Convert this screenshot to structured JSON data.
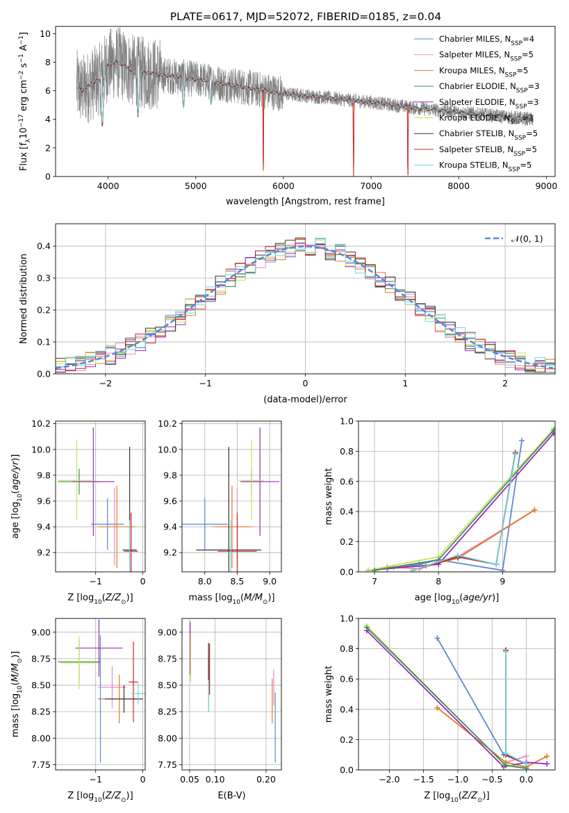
{
  "figure": {
    "title": "PLATE=0617, MJD=52072, FIBERID=0185, z=0.04"
  },
  "models": [
    {
      "name": "Chabrier MILES",
      "nssp": "4",
      "color": "#5b87d6"
    },
    {
      "name": "Salpeter MILES",
      "nssp": "5",
      "color": "#e98ac8"
    },
    {
      "name": "Kroupa MILES",
      "nssp": "5",
      "color": "#e07b25"
    },
    {
      "name": "Chabrier ELODIE",
      "nssp": "3",
      "color": "#3c8a6a"
    },
    {
      "name": "Salpeter ELODIE",
      "nssp": "3",
      "color": "#9a2ab5"
    },
    {
      "name": "Kroupa ELODIE",
      "nssp": "3",
      "color": "#c7e15a"
    },
    {
      "name": "Chabrier STELIB",
      "nssp": "5",
      "color": "#333333"
    },
    {
      "name": "Salpeter STELIB",
      "nssp": "5",
      "color": "#c9202a"
    },
    {
      "name": "Kroupa STELIB",
      "nssp": "5",
      "color": "#6fd6de"
    }
  ],
  "chart_data": [
    {
      "id": "spectrum",
      "type": "line",
      "xlabel": "wavelength [Angstrom, rest frame]",
      "ylabel": "Flux [f_λ10^-17 erg cm^-2 s^-1 A^-1]",
      "xlim": [
        3400,
        9100
      ],
      "ylim": [
        0,
        10.5
      ],
      "xticks": [
        4000,
        5000,
        6000,
        7000,
        8000,
        9000
      ],
      "yticks": [
        0,
        2,
        4,
        6,
        8,
        10
      ],
      "data_color": "#808080",
      "data_wavelength_range": [
        3640,
        8850
      ],
      "model_continuum": {
        "wavelength": [
          3650,
          3700,
          3800,
          3900,
          4000,
          4100,
          4200,
          4300,
          4500,
          5000,
          5500,
          6000,
          6500,
          7000,
          7500,
          8000,
          8500,
          8850
        ],
        "flux": [
          6.3,
          6.0,
          6.4,
          6.8,
          7.8,
          8.0,
          7.7,
          7.3,
          7.2,
          6.8,
          6.3,
          5.8,
          5.5,
          5.2,
          4.8,
          4.5,
          4.2,
          4.0
        ]
      },
      "absorption_features": [
        {
          "wavelength": 3934,
          "depth": 3.5
        },
        {
          "wavelength": 4340,
          "depth": 3.0
        },
        {
          "wavelength": 4860,
          "depth": 2.0
        },
        {
          "wavelength": 5175,
          "depth": 1.5
        },
        {
          "wavelength": 5770,
          "depth": 6.0
        },
        {
          "wavelength": 6800,
          "depth": 5.5
        },
        {
          "wavelength": 7420,
          "depth": 5.0
        }
      ],
      "grid": false,
      "legend": "upper right"
    },
    {
      "id": "residuals",
      "type": "histogram",
      "xlabel": "(data-model)/error",
      "ylabel": "Normed distribution",
      "xlim": [
        -2.5,
        2.5
      ],
      "ylim": [
        0,
        0.47
      ],
      "xticks": [
        -2,
        -1,
        0,
        1,
        2
      ],
      "yticks": [
        0.0,
        0.1,
        0.2,
        0.3,
        0.4
      ],
      "bin_width": 0.1,
      "reference": {
        "name": "𝒩(0, 1)",
        "mean": 0,
        "sigma": 1,
        "color": "#5b87d6",
        "style": "dashed"
      },
      "grid": true,
      "legend": "upper right"
    },
    {
      "id": "age-vs-Z",
      "type": "errorbar",
      "xlabel": "Z [log10(Z/Z⊙)]",
      "ylabel": "age  [log10(age/yr)]",
      "xlim": [
        -1.85,
        0.05
      ],
      "ylim": [
        9.05,
        10.22
      ],
      "xticks": [
        -1,
        0
      ],
      "yticks": [
        9.2,
        9.4,
        9.6,
        9.8,
        10.0,
        10.2
      ],
      "points": [
        {
          "model": 0,
          "x": -0.75,
          "xerr": 0.35,
          "y": 9.42,
          "yerr": 0.2
        },
        {
          "model": 1,
          "x": -0.6,
          "xerr": 0.3,
          "y": 9.4,
          "yerr": 0.3
        },
        {
          "model": 2,
          "x": -0.55,
          "xerr": 0.4,
          "y": 9.4,
          "yerr": 0.32
        },
        {
          "model": 3,
          "x": -1.35,
          "xerr": 0.45,
          "y": 9.75,
          "yerr": 0.1
        },
        {
          "model": 4,
          "x": -1.05,
          "xerr": 0.45,
          "y": 9.75,
          "yerr": 0.42
        },
        {
          "model": 5,
          "x": -1.4,
          "xerr": 0.4,
          "y": 9.76,
          "yerr": 0.31
        },
        {
          "model": 6,
          "x": -0.28,
          "xerr": 0.15,
          "y": 9.22,
          "yerr": 0.8
        },
        {
          "model": 7,
          "x": -0.25,
          "xerr": 0.15,
          "y": 9.21,
          "yerr": 0.3
        },
        {
          "model": 8,
          "x": -0.28,
          "xerr": 0.05,
          "y": 9.2,
          "yerr": 0.25
        }
      ],
      "grid": true
    },
    {
      "id": "age-vs-mass",
      "type": "errorbar",
      "xlabel": "mass [log10(M/M⊙)]",
      "ylabel": "",
      "xlim": [
        7.65,
        9.18
      ],
      "ylim": [
        9.05,
        10.22
      ],
      "xticks": [
        8.0,
        8.5,
        9.0
      ],
      "yticks": [
        9.2,
        9.4,
        9.6,
        9.8,
        10.0,
        10.2
      ],
      "points": [
        {
          "model": 0,
          "x": 8.0,
          "xerr": 0.35,
          "y": 9.42,
          "yerr": 0.2
        },
        {
          "model": 1,
          "x": 8.5,
          "xerr": 0.25,
          "y": 9.4,
          "yerr": 0.3
        },
        {
          "model": 2,
          "x": 8.42,
          "xerr": 0.3,
          "y": 9.4,
          "yerr": 0.32
        },
        {
          "model": 3,
          "x": 8.72,
          "xerr": 0.15,
          "y": 9.75,
          "yerr": 0.1
        },
        {
          "model": 4,
          "x": 8.85,
          "xerr": 0.3,
          "y": 9.75,
          "yerr": 0.42
        },
        {
          "model": 5,
          "x": 8.72,
          "xerr": 0.2,
          "y": 9.76,
          "yerr": 0.31
        },
        {
          "model": 6,
          "x": 8.37,
          "xerr": 0.5,
          "y": 9.22,
          "yerr": 0.8
        },
        {
          "model": 7,
          "x": 8.5,
          "xerr": 0.3,
          "y": 9.21,
          "yerr": 0.3
        },
        {
          "model": 8,
          "x": 8.4,
          "xerr": 0.05,
          "y": 9.2,
          "yerr": 0.25
        }
      ],
      "grid": true
    },
    {
      "id": "weight-vs-age",
      "type": "line",
      "xlabel": "age  [log10(age/yr)]",
      "ylabel": "mass weight",
      "xlim": [
        6.75,
        9.82
      ],
      "ylim": [
        0,
        1.0
      ],
      "xticks": [
        7,
        8,
        9
      ],
      "yticks": [
        0.0,
        0.2,
        0.4,
        0.6,
        0.8,
        1.0
      ],
      "series": [
        {
          "model": 0,
          "x": [
            7.2,
            7.7,
            8.0,
            9.0,
            9.3
          ],
          "y": [
            0.02,
            0.05,
            0.08,
            0.01,
            0.87
          ]
        },
        {
          "model": 1,
          "x": [
            7.3,
            7.7,
            8.0,
            8.3,
            9.5
          ],
          "y": [
            0.03,
            0.02,
            0.07,
            0.1,
            0.41
          ]
        },
        {
          "model": 2,
          "x": [
            6.9,
            7.2,
            7.8,
            8.3,
            9.5
          ],
          "y": [
            0.01,
            0.03,
            0.04,
            0.09,
            0.41
          ]
        },
        {
          "model": 4,
          "x": [
            6.9,
            8.0,
            9.8
          ],
          "y": [
            0.01,
            0.05,
            0.92
          ]
        },
        {
          "model": 5,
          "x": [
            6.9,
            8.0,
            9.8
          ],
          "y": [
            0.01,
            0.1,
            0.95
          ]
        },
        {
          "model": 3,
          "x": [
            7.0,
            8.0,
            9.8
          ],
          "y": [
            0.01,
            0.08,
            0.94
          ]
        },
        {
          "model": 6,
          "x": [
            7.6,
            8.3,
            8.9,
            9.2
          ],
          "y": [
            0.01,
            0.1,
            0.05,
            0.79
          ]
        },
        {
          "model": 7,
          "x": [
            7.6,
            8.3,
            8.9,
            9.2
          ],
          "y": [
            0.01,
            0.1,
            0.05,
            0.79
          ]
        },
        {
          "model": 8,
          "x": [
            7.6,
            8.3,
            8.9,
            9.2
          ],
          "y": [
            0.01,
            0.11,
            0.05,
            0.78
          ]
        }
      ],
      "grid": true
    },
    {
      "id": "mass-vs-Z",
      "type": "errorbar",
      "xlabel": "Z [log10(Z/Z⊙)]",
      "ylabel": "mass [log10(M/M⊙)]",
      "xlim": [
        -1.85,
        0.05
      ],
      "ylim": [
        7.7,
        9.13
      ],
      "xticks": [
        -1,
        0
      ],
      "yticks": [
        7.75,
        8.0,
        8.25,
        8.5,
        8.75,
        9.0
      ],
      "points": [
        {
          "model": 0,
          "x": -0.9,
          "xerr": 0.05,
          "y": 8.37,
          "yerr": 0.6
        },
        {
          "model": 1,
          "x": -0.65,
          "xerr": 0.3,
          "y": 8.48,
          "yerr": 0.2
        },
        {
          "model": 2,
          "x": -0.5,
          "xerr": 0.45,
          "y": 8.37,
          "yerr": 0.23
        },
        {
          "model": 3,
          "x": -1.35,
          "xerr": 0.45,
          "y": 8.72,
          "yerr": 0.2
        },
        {
          "model": 4,
          "x": -0.93,
          "xerr": 0.5,
          "y": 8.85,
          "yerr": 0.27
        },
        {
          "model": 5,
          "x": -1.35,
          "xerr": 0.4,
          "y": 8.71,
          "yerr": 0.25
        },
        {
          "model": 6,
          "x": -0.4,
          "xerr": 0.4,
          "y": 8.37,
          "yerr": 0.13
        },
        {
          "model": 7,
          "x": -0.2,
          "xerr": 0.1,
          "y": 8.53,
          "yerr": 0.38
        },
        {
          "model": 8,
          "x": -0.1,
          "xerr": 0.15,
          "y": 8.42,
          "yerr": 0.1
        }
      ],
      "grid": true
    },
    {
      "id": "mass-vs-ebv",
      "type": "errorbar",
      "xlabel": "E(B-V)",
      "ylabel": "",
      "xlim": [
        0.035,
        0.23
      ],
      "ylim": [
        7.7,
        9.13
      ],
      "xticks": [
        0.05,
        0.1,
        0.2
      ],
      "yticks": [
        7.75,
        8.0,
        8.25,
        8.5,
        8.75,
        9.0
      ],
      "points": [
        {
          "model": 0,
          "x": 0.218,
          "y": 8.1,
          "yerr": 0.33
        },
        {
          "model": 1,
          "x": 0.215,
          "y": 8.48,
          "yerr": 0.17
        },
        {
          "model": 2,
          "x": 0.212,
          "y": 8.35,
          "yerr": 0.21
        },
        {
          "model": 3,
          "x": 0.087,
          "y": 8.5,
          "yerr": 0.25
        },
        {
          "model": 4,
          "x": 0.051,
          "y": 8.85,
          "yerr": 0.25
        },
        {
          "model": 5,
          "x": 0.052,
          "y": 8.75,
          "yerr": 0.22
        },
        {
          "model": 6,
          "x": 0.087,
          "y": 8.7,
          "yerr": 0.2
        },
        {
          "model": 7,
          "x": 0.089,
          "y": 8.65,
          "yerr": 0.24
        },
        {
          "model": 8,
          "x": 0.087,
          "y": 8.4,
          "yerr": 0.15
        }
      ],
      "grid": true
    },
    {
      "id": "weight-vs-Z",
      "type": "line",
      "xlabel": "Z [log10(Z/Z⊙)]",
      "ylabel": "mass weight",
      "xlim": [
        -2.45,
        0.42
      ],
      "ylim": [
        0,
        1.0
      ],
      "xticks": [
        -2.0,
        -1.5,
        -1.0,
        -0.5,
        0.0
      ],
      "yticks": [
        0.0,
        0.2,
        0.4,
        0.6,
        0.8,
        1.0
      ],
      "series": [
        {
          "model": 0,
          "x": [
            -1.3,
            -0.33,
            0.0
          ],
          "y": [
            0.87,
            0.1,
            0.04
          ]
        },
        {
          "model": 1,
          "x": [
            -0.3,
            0.0
          ],
          "y": [
            0.05,
            0.09
          ]
        },
        {
          "model": 2,
          "x": [
            -1.3,
            -0.3,
            0.0,
            0.3
          ],
          "y": [
            0.41,
            0.05,
            0.02,
            0.09
          ]
        },
        {
          "model": 4,
          "x": [
            -2.33,
            -0.33,
            0.0,
            0.3
          ],
          "y": [
            0.92,
            0.02,
            0.05,
            0.04
          ]
        },
        {
          "model": 5,
          "x": [
            -2.33,
            -0.33,
            0.0
          ],
          "y": [
            0.95,
            0.04,
            0.01
          ]
        },
        {
          "model": 3,
          "x": [
            -2.33,
            -0.3,
            0.0
          ],
          "y": [
            0.94,
            0.03,
            0.01
          ]
        },
        {
          "model": 6,
          "x": [
            -0.3,
            -0.3,
            0.0
          ],
          "y": [
            0.79,
            0.1,
            0.04
          ]
        },
        {
          "model": 7,
          "x": [
            -0.3,
            -0.3,
            0.0
          ],
          "y": [
            0.79,
            0.1,
            0.04
          ]
        },
        {
          "model": 8,
          "x": [
            -0.3,
            -0.3,
            0.0
          ],
          "y": [
            0.78,
            0.11,
            0.04
          ]
        }
      ],
      "grid": true
    }
  ]
}
